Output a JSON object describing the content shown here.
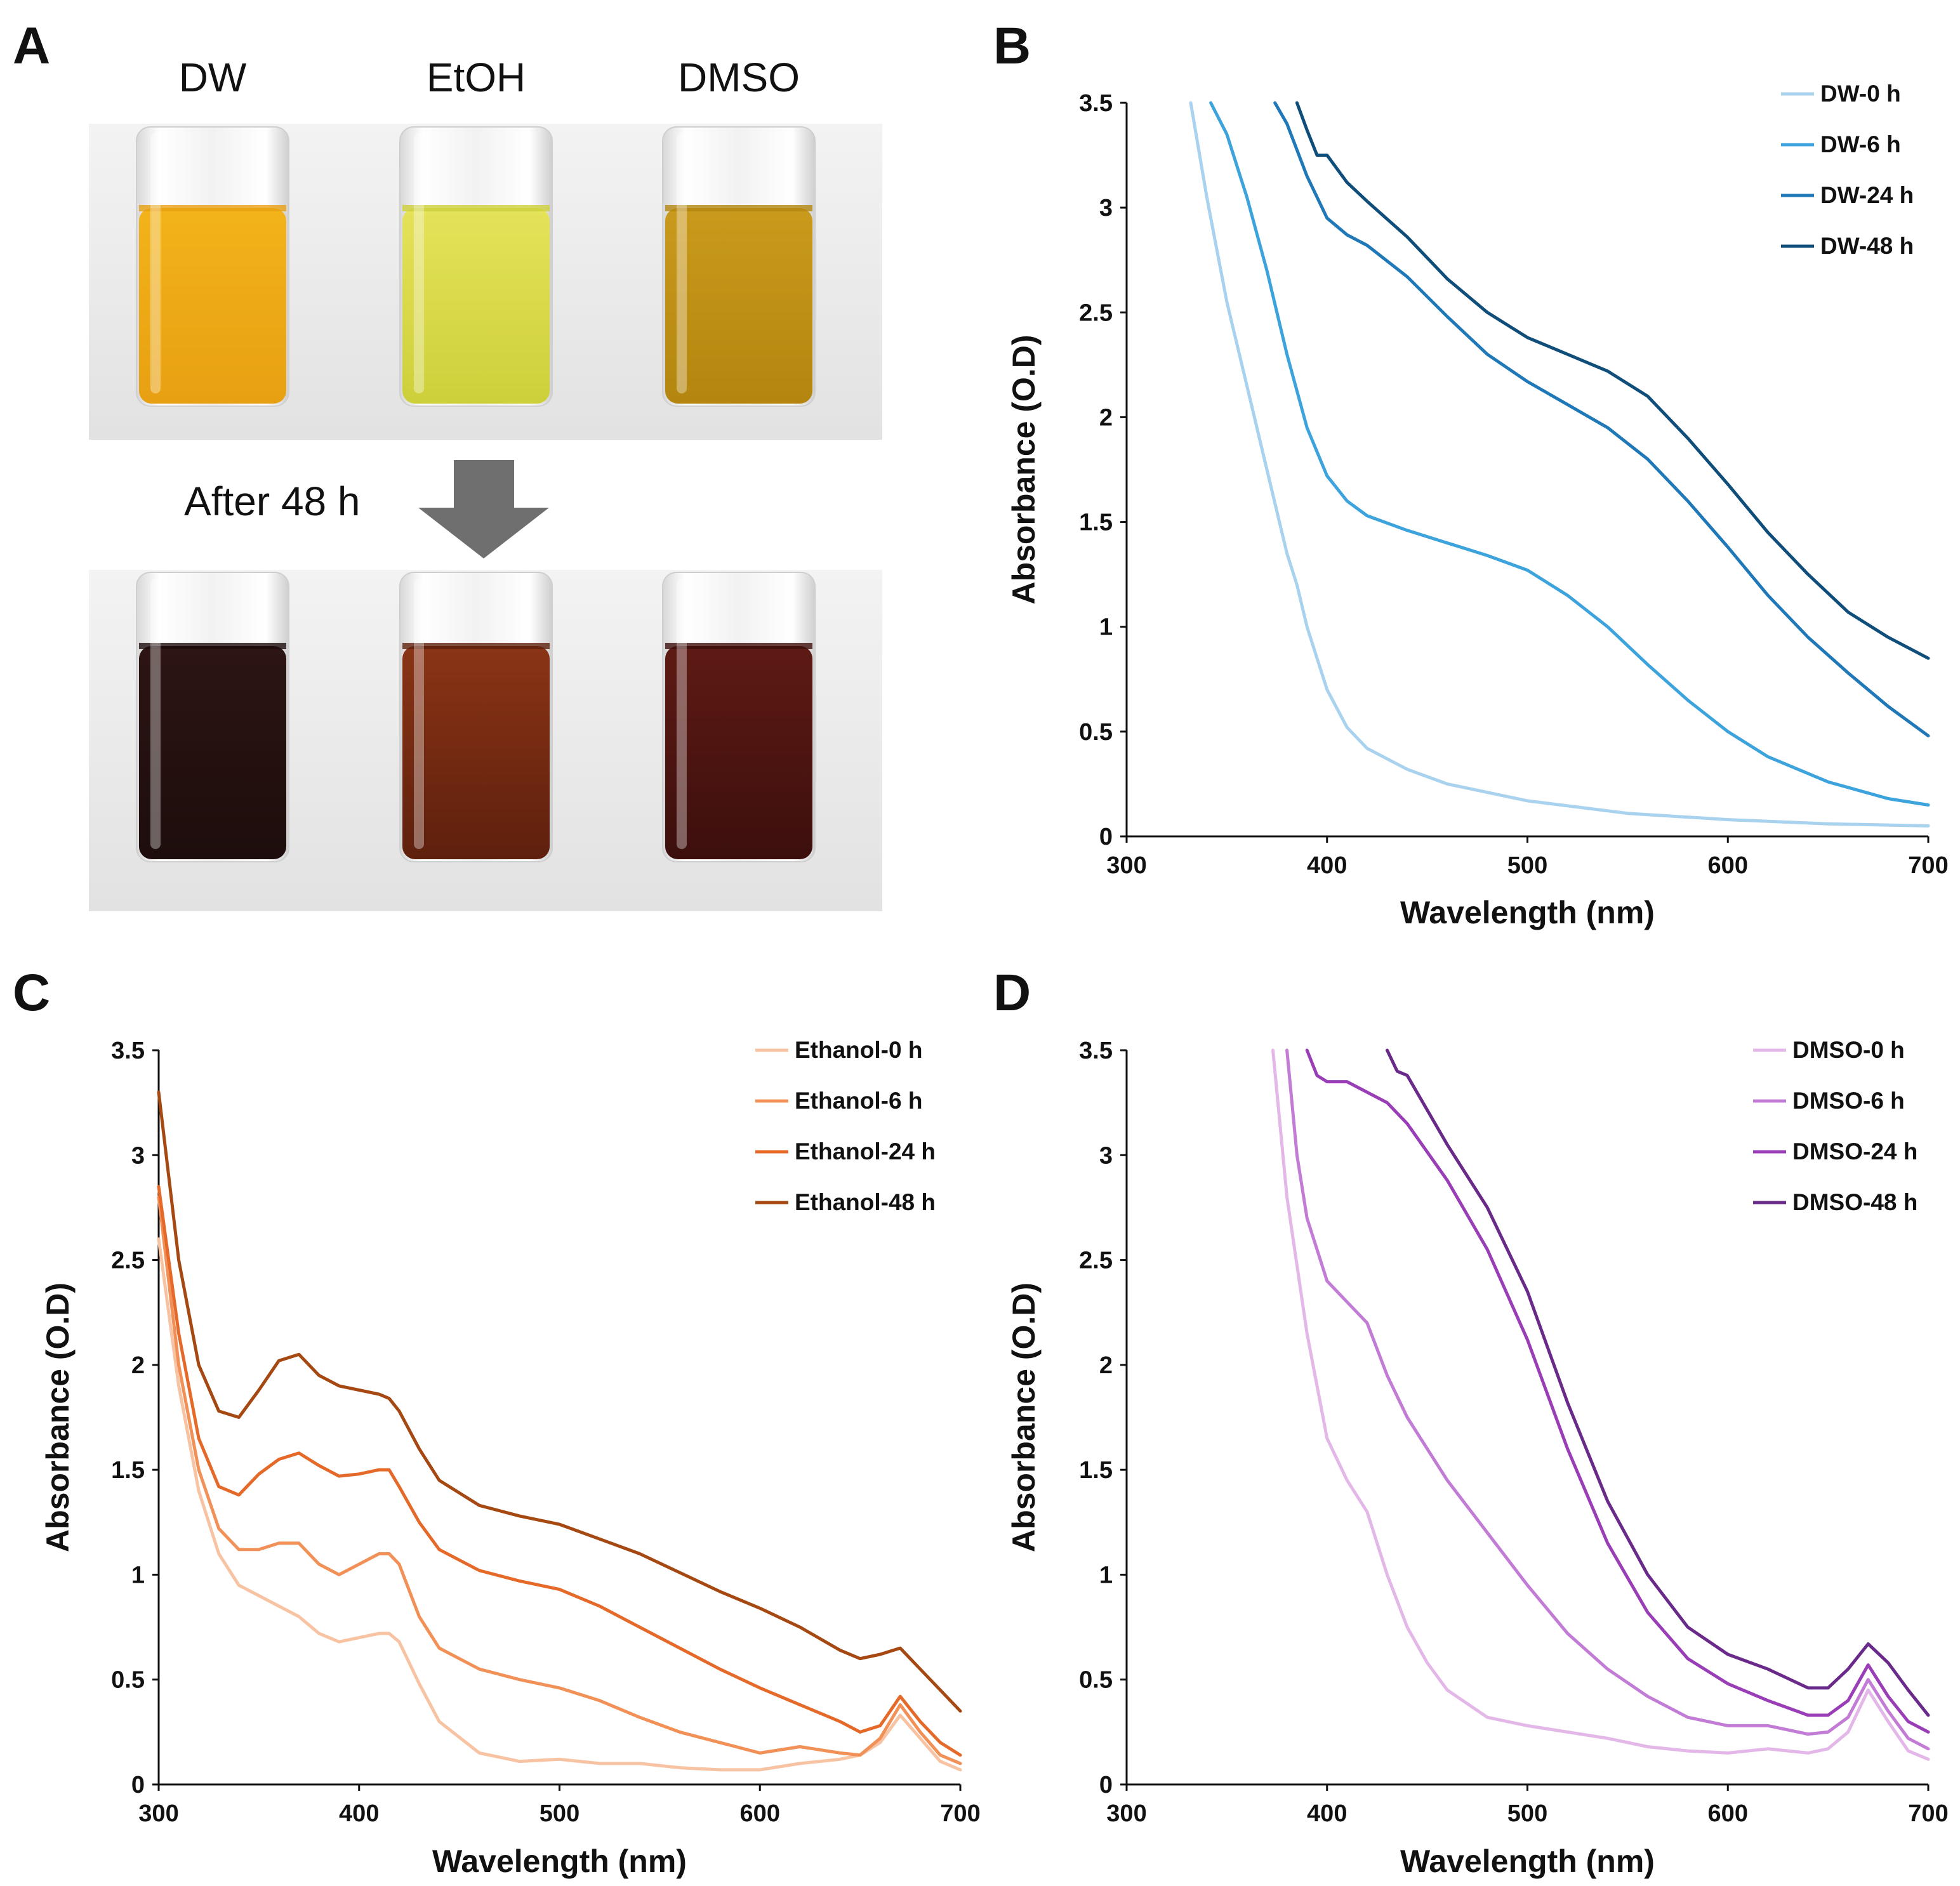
{
  "panel_a": {
    "letter": "A",
    "solvents": [
      "DW",
      "EtOH",
      "DMSO"
    ],
    "after_label": "After 48 h",
    "vials_before": [
      {
        "name": "DW",
        "color_top": "#f3b31a",
        "color_bottom": "#e7a012"
      },
      {
        "name": "EtOH",
        "color_top": "#e5e25a",
        "color_bottom": "#cdd03a"
      },
      {
        "name": "DMSO",
        "color_top": "#c99a1c",
        "color_bottom": "#b4860f"
      }
    ],
    "vials_after": [
      {
        "name": "DW",
        "color_top": "#2c1512",
        "color_bottom": "#1d0d0c"
      },
      {
        "name": "EtOH",
        "color_top": "#8a3416",
        "color_bottom": "#5e200d"
      },
      {
        "name": "DMSO",
        "color_top": "#5e1a14",
        "color_bottom": "#3c0f0d"
      }
    ],
    "arrow_color": "#6f6f6f"
  },
  "chart_data": [
    {
      "panel": "B",
      "type": "line",
      "xlabel": "Wavelength (nm)",
      "ylabel": "Absorbance (O.D)",
      "xlim": [
        300,
        700
      ],
      "ylim": [
        0,
        3.5
      ],
      "xticks": [
        300,
        400,
        500,
        600,
        700
      ],
      "yticks": [
        0,
        0.5,
        1,
        1.5,
        2,
        2.5,
        3,
        3.5
      ],
      "xtick_labels": [
        "300",
        "400",
        "500",
        "600",
        "700"
      ],
      "ytick_labels": [
        "0",
        "0.5",
        "1",
        "1.5",
        "2",
        "2.5",
        "3",
        "3.5"
      ],
      "legend_position": "top-right",
      "series": [
        {
          "name": "DW-0 h",
          "color": "#a8d2ee",
          "x": [
            332,
            340,
            350,
            360,
            370,
            380,
            385,
            390,
            395,
            400,
            410,
            420,
            440,
            460,
            500,
            550,
            600,
            650,
            700
          ],
          "y": [
            3.5,
            3.05,
            2.55,
            2.15,
            1.75,
            1.35,
            1.2,
            1.0,
            0.85,
            0.7,
            0.52,
            0.42,
            0.32,
            0.25,
            0.17,
            0.11,
            0.08,
            0.06,
            0.05
          ]
        },
        {
          "name": "DW-6 h",
          "color": "#3ca3dd",
          "x": [
            342,
            350,
            360,
            370,
            380,
            390,
            400,
            410,
            420,
            440,
            460,
            480,
            500,
            520,
            540,
            560,
            580,
            600,
            620,
            650,
            680,
            700
          ],
          "y": [
            3.5,
            3.35,
            3.05,
            2.7,
            2.3,
            1.95,
            1.72,
            1.6,
            1.53,
            1.46,
            1.4,
            1.34,
            1.27,
            1.15,
            1.0,
            0.82,
            0.65,
            0.5,
            0.38,
            0.26,
            0.18,
            0.15
          ]
        },
        {
          "name": "DW-24 h",
          "color": "#1f78b8",
          "x": [
            374,
            380,
            390,
            400,
            410,
            420,
            440,
            460,
            480,
            500,
            520,
            540,
            560,
            580,
            600,
            620,
            640,
            660,
            680,
            700
          ],
          "y": [
            3.5,
            3.4,
            3.15,
            2.95,
            2.87,
            2.82,
            2.67,
            2.48,
            2.3,
            2.17,
            2.06,
            1.95,
            1.8,
            1.6,
            1.38,
            1.15,
            0.95,
            0.78,
            0.62,
            0.48
          ]
        },
        {
          "name": "DW-48 h",
          "color": "#0f4e7a",
          "x": [
            385,
            390,
            395,
            400,
            410,
            420,
            440,
            460,
            480,
            500,
            520,
            540,
            560,
            580,
            600,
            620,
            640,
            660,
            680,
            700
          ],
          "y": [
            3.5,
            3.37,
            3.25,
            3.25,
            3.12,
            3.03,
            2.86,
            2.66,
            2.5,
            2.38,
            2.3,
            2.22,
            2.1,
            1.9,
            1.68,
            1.45,
            1.25,
            1.07,
            0.95,
            0.85
          ]
        }
      ]
    },
    {
      "panel": "C",
      "type": "line",
      "xlabel": "Wavelength (nm)",
      "ylabel": "Absorbance (O.D)",
      "xlim": [
        300,
        700
      ],
      "ylim": [
        0,
        3.5
      ],
      "xticks": [
        300,
        400,
        500,
        600,
        700
      ],
      "yticks": [
        0,
        0.5,
        1,
        1.5,
        2,
        2.5,
        3,
        3.5
      ],
      "xtick_labels": [
        "300",
        "400",
        "500",
        "600",
        "700"
      ],
      "ytick_labels": [
        "0",
        "0.5",
        "1",
        "1.5",
        "2",
        "2.5",
        "3",
        "3.5"
      ],
      "legend_position": "top-right",
      "series": [
        {
          "name": "Ethanol-0 h",
          "color": "#f8c3a2",
          "x": [
            300,
            310,
            320,
            330,
            340,
            350,
            360,
            370,
            380,
            390,
            400,
            410,
            415,
            420,
            430,
            440,
            460,
            480,
            500,
            520,
            540,
            560,
            580,
            600,
            620,
            640,
            650,
            660,
            670,
            680,
            690,
            700
          ],
          "y": [
            2.6,
            1.9,
            1.4,
            1.1,
            0.95,
            0.9,
            0.85,
            0.8,
            0.72,
            0.68,
            0.7,
            0.72,
            0.72,
            0.68,
            0.48,
            0.3,
            0.15,
            0.11,
            0.12,
            0.1,
            0.1,
            0.08,
            0.07,
            0.07,
            0.1,
            0.12,
            0.14,
            0.2,
            0.33,
            0.22,
            0.11,
            0.07
          ]
        },
        {
          "name": "Ethanol-6 h",
          "color": "#f19057",
          "x": [
            300,
            310,
            320,
            330,
            340,
            350,
            360,
            370,
            380,
            390,
            400,
            410,
            415,
            420,
            430,
            440,
            460,
            480,
            500,
            520,
            540,
            560,
            580,
            600,
            620,
            640,
            650,
            660,
            670,
            680,
            690,
            700
          ],
          "y": [
            2.8,
            2.0,
            1.5,
            1.22,
            1.12,
            1.12,
            1.15,
            1.15,
            1.05,
            1.0,
            1.05,
            1.1,
            1.1,
            1.05,
            0.8,
            0.65,
            0.55,
            0.5,
            0.46,
            0.4,
            0.32,
            0.25,
            0.2,
            0.15,
            0.18,
            0.15,
            0.14,
            0.22,
            0.38,
            0.25,
            0.14,
            0.1
          ]
        },
        {
          "name": "Ethanol-24 h",
          "color": "#e56a2a",
          "x": [
            300,
            310,
            320,
            330,
            340,
            350,
            360,
            370,
            380,
            390,
            400,
            410,
            415,
            420,
            430,
            440,
            460,
            480,
            500,
            520,
            540,
            560,
            580,
            600,
            620,
            640,
            650,
            660,
            670,
            680,
            690,
            700
          ],
          "y": [
            2.85,
            2.15,
            1.65,
            1.42,
            1.38,
            1.48,
            1.55,
            1.58,
            1.52,
            1.47,
            1.48,
            1.5,
            1.5,
            1.42,
            1.25,
            1.12,
            1.02,
            0.97,
            0.93,
            0.85,
            0.75,
            0.65,
            0.55,
            0.46,
            0.38,
            0.3,
            0.25,
            0.28,
            0.42,
            0.3,
            0.2,
            0.14
          ]
        },
        {
          "name": "Ethanol-48 h",
          "color": "#a54812",
          "x": [
            300,
            310,
            320,
            330,
            340,
            350,
            360,
            370,
            380,
            390,
            400,
            410,
            415,
            420,
            430,
            440,
            460,
            480,
            500,
            520,
            540,
            560,
            580,
            600,
            620,
            640,
            650,
            660,
            670,
            680,
            690,
            700
          ],
          "y": [
            3.3,
            2.5,
            2.0,
            1.78,
            1.75,
            1.88,
            2.02,
            2.05,
            1.95,
            1.9,
            1.88,
            1.86,
            1.84,
            1.78,
            1.6,
            1.45,
            1.33,
            1.28,
            1.24,
            1.17,
            1.1,
            1.01,
            0.92,
            0.84,
            0.75,
            0.64,
            0.6,
            0.62,
            0.65,
            0.55,
            0.45,
            0.35
          ]
        }
      ]
    },
    {
      "panel": "D",
      "type": "line",
      "xlabel": "Wavelength (nm)",
      "ylabel": "Absorbance (O.D)",
      "xlim": [
        300,
        700
      ],
      "ylim": [
        0,
        3.5
      ],
      "xticks": [
        300,
        400,
        500,
        600,
        700
      ],
      "yticks": [
        0,
        0.5,
        1,
        1.5,
        2,
        2.5,
        3,
        3.5
      ],
      "xtick_labels": [
        "300",
        "400",
        "500",
        "600",
        "700"
      ],
      "ytick_labels": [
        "0",
        "0.5",
        "1",
        "1.5",
        "2",
        "2.5",
        "3",
        "3.5"
      ],
      "legend_position": "top-right",
      "series": [
        {
          "name": "DMSO-0 h",
          "color": "#e3b8e8",
          "x": [
            373,
            380,
            390,
            400,
            410,
            420,
            430,
            440,
            450,
            460,
            480,
            500,
            520,
            540,
            560,
            580,
            600,
            620,
            640,
            650,
            660,
            670,
            680,
            690,
            700
          ],
          "y": [
            3.5,
            2.8,
            2.15,
            1.65,
            1.45,
            1.3,
            1.0,
            0.75,
            0.58,
            0.45,
            0.32,
            0.28,
            0.25,
            0.22,
            0.18,
            0.16,
            0.15,
            0.17,
            0.15,
            0.17,
            0.25,
            0.45,
            0.3,
            0.16,
            0.12
          ]
        },
        {
          "name": "DMSO-6 h",
          "color": "#c27cd6",
          "x": [
            380,
            385,
            390,
            400,
            410,
            420,
            430,
            440,
            460,
            480,
            500,
            520,
            540,
            560,
            580,
            600,
            620,
            640,
            650,
            660,
            670,
            680,
            690,
            700
          ],
          "y": [
            3.5,
            3.0,
            2.7,
            2.4,
            2.3,
            2.2,
            1.95,
            1.75,
            1.45,
            1.2,
            0.95,
            0.72,
            0.55,
            0.42,
            0.32,
            0.28,
            0.28,
            0.24,
            0.25,
            0.32,
            0.5,
            0.35,
            0.22,
            0.17
          ]
        },
        {
          "name": "DMSO-24 h",
          "color": "#9a3eb7",
          "x": [
            390,
            395,
            400,
            410,
            420,
            430,
            440,
            460,
            480,
            500,
            520,
            540,
            560,
            580,
            600,
            620,
            640,
            650,
            660,
            670,
            680,
            690,
            700
          ],
          "y": [
            3.5,
            3.38,
            3.35,
            3.35,
            3.3,
            3.25,
            3.15,
            2.88,
            2.55,
            2.12,
            1.6,
            1.15,
            0.82,
            0.6,
            0.48,
            0.4,
            0.33,
            0.33,
            0.4,
            0.57,
            0.42,
            0.3,
            0.25
          ]
        },
        {
          "name": "DMSO-48 h",
          "color": "#6a2a8a",
          "x": [
            430,
            435,
            440,
            460,
            480,
            500,
            520,
            540,
            560,
            580,
            600,
            620,
            640,
            650,
            660,
            670,
            680,
            690,
            700
          ],
          "y": [
            3.5,
            3.4,
            3.38,
            3.05,
            2.75,
            2.35,
            1.82,
            1.35,
            1.0,
            0.75,
            0.62,
            0.55,
            0.46,
            0.46,
            0.55,
            0.67,
            0.58,
            0.45,
            0.33
          ]
        }
      ]
    }
  ]
}
